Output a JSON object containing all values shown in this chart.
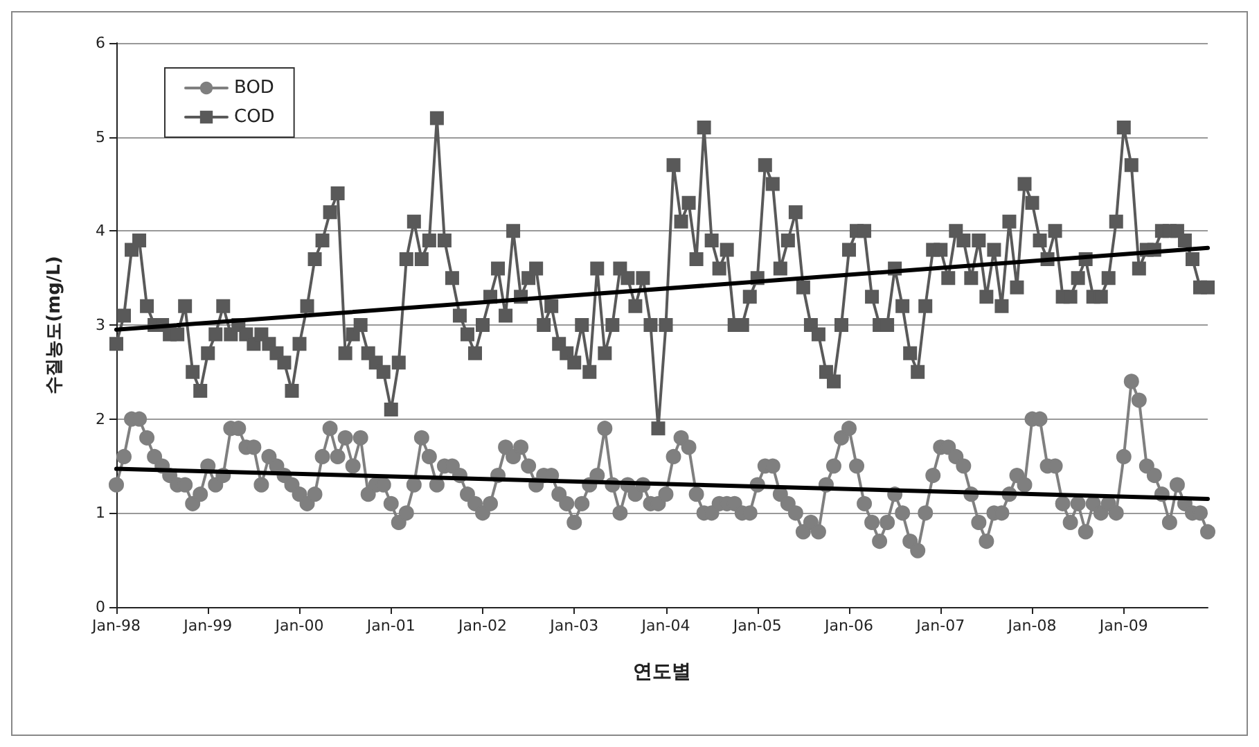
{
  "chart_data": {
    "type": "line",
    "xlabel": "연도별",
    "ylabel": "수질농도(mg/L)",
    "categories": [
      "Jan-98",
      null,
      null,
      null,
      null,
      null,
      null,
      null,
      null,
      null,
      null,
      null,
      "Jan-99",
      null,
      null,
      null,
      null,
      null,
      null,
      null,
      null,
      null,
      null,
      null,
      "Jan-00",
      null,
      null,
      null,
      null,
      null,
      null,
      null,
      null,
      null,
      null,
      null,
      "Jan-01",
      null,
      null,
      null,
      null,
      null,
      null,
      null,
      null,
      null,
      null,
      null,
      "Jan-02",
      null,
      null,
      null,
      null,
      null,
      null,
      null,
      null,
      null,
      null,
      null,
      "Jan-03",
      null,
      null,
      null,
      null,
      null,
      null,
      null,
      null,
      null,
      null,
      null,
      "Jan-04",
      null,
      null,
      null,
      null,
      null,
      null,
      null,
      null,
      null,
      null,
      null,
      "Jan-05",
      null,
      null,
      null,
      null,
      null,
      null,
      null,
      null,
      null,
      null,
      null,
      "Jan-06",
      null,
      null,
      null,
      null,
      null,
      null,
      null,
      null,
      null,
      null,
      null,
      "Jan-07",
      null,
      null,
      null,
      null,
      null,
      null,
      null,
      null,
      null,
      null,
      null,
      "Jan-08",
      null,
      null,
      null,
      null,
      null,
      null,
      null,
      null,
      null,
      null,
      null,
      "Jan-09",
      null,
      null,
      null,
      null,
      null,
      null,
      null,
      null,
      null,
      null,
      null
    ],
    "series": [
      {
        "name": "BOD",
        "color": "#7f7f7f",
        "marker": "circle",
        "values": [
          1.3,
          1.6,
          2.0,
          2.0,
          1.8,
          1.6,
          1.5,
          1.4,
          1.3,
          1.3,
          1.1,
          1.2,
          1.5,
          1.3,
          1.4,
          1.9,
          1.9,
          1.7,
          1.7,
          1.3,
          1.6,
          1.5,
          1.4,
          1.3,
          1.2,
          1.1,
          1.2,
          1.6,
          1.9,
          1.6,
          1.8,
          1.5,
          1.8,
          1.2,
          1.3,
          1.3,
          1.1,
          0.9,
          1.0,
          1.3,
          1.8,
          1.6,
          1.3,
          1.5,
          1.5,
          1.4,
          1.2,
          1.1,
          1.0,
          1.1,
          1.4,
          1.7,
          1.6,
          1.7,
          1.5,
          1.3,
          1.4,
          1.4,
          1.2,
          1.1,
          0.9,
          1.1,
          1.3,
          1.4,
          1.9,
          1.3,
          1.0,
          1.3,
          1.2,
          1.3,
          1.1,
          1.1,
          1.2,
          1.6,
          1.8,
          1.7,
          1.2,
          1.0,
          1.0,
          1.1,
          1.1,
          1.1,
          1.0,
          1.0,
          1.3,
          1.5,
          1.5,
          1.2,
          1.1,
          1.0,
          0.8,
          0.9,
          0.8,
          1.3,
          1.5,
          1.8,
          1.9,
          1.5,
          1.1,
          0.9,
          0.7,
          0.9,
          1.2,
          1.0,
          0.7,
          0.6,
          1.0,
          1.4,
          1.7,
          1.7,
          1.6,
          1.5,
          1.2,
          0.9,
          0.7,
          1.0,
          1.0,
          1.2,
          1.4,
          1.3,
          2.0,
          2.0,
          1.5,
          1.5,
          1.1,
          0.9,
          1.1,
          0.8,
          1.1,
          1.0,
          1.1,
          1.0,
          1.6,
          2.4,
          2.2,
          1.5,
          1.4,
          1.2,
          0.9,
          1.3,
          1.1,
          1.0,
          1.0,
          0.8
        ]
      },
      {
        "name": "COD",
        "color": "#595959",
        "marker": "square",
        "values": [
          2.8,
          3.1,
          3.8,
          3.9,
          3.2,
          3.0,
          3.0,
          2.9,
          2.9,
          3.2,
          2.5,
          2.3,
          2.7,
          2.9,
          3.2,
          2.9,
          3.0,
          2.9,
          2.8,
          2.9,
          2.8,
          2.7,
          2.6,
          2.3,
          2.8,
          3.2,
          3.7,
          3.9,
          4.2,
          4.4,
          2.7,
          2.9,
          3.0,
          2.7,
          2.6,
          2.5,
          2.1,
          2.6,
          3.7,
          4.1,
          3.7,
          3.9,
          5.2,
          3.9,
          3.5,
          3.1,
          2.9,
          2.7,
          3.0,
          3.3,
          3.6,
          3.1,
          4.0,
          3.3,
          3.5,
          3.6,
          3.0,
          3.2,
          2.8,
          2.7,
          2.6,
          3.0,
          2.5,
          3.6,
          2.7,
          3.0,
          3.6,
          3.5,
          3.2,
          3.5,
          3.0,
          1.9,
          3.0,
          4.7,
          4.1,
          4.3,
          3.7,
          5.1,
          3.9,
          3.6,
          3.8,
          3.0,
          3.0,
          3.3,
          3.5,
          4.7,
          4.5,
          3.6,
          3.9,
          4.2,
          3.4,
          3.0,
          2.9,
          2.5,
          2.4,
          3.0,
          3.8,
          4.0,
          4.0,
          3.3,
          3.0,
          3.0,
          3.6,
          3.2,
          2.7,
          2.5,
          3.2,
          3.8,
          3.8,
          3.5,
          4.0,
          3.9,
          3.5,
          3.9,
          3.3,
          3.8,
          3.2,
          4.1,
          3.4,
          4.5,
          4.3,
          3.9,
          3.7,
          4.0,
          3.3,
          3.3,
          3.5,
          3.7,
          3.3,
          3.3,
          3.5,
          4.1,
          5.1,
          4.7,
          3.6,
          3.8,
          3.8,
          4.0,
          4.0,
          4.0,
          3.9,
          3.7,
          3.4,
          3.4
        ]
      },
      {
        "color": "#000000",
        "marker": "none",
        "values": [
          1.47,
          null,
          null,
          null,
          null,
          null,
          null,
          null,
          null,
          null,
          null,
          null,
          null,
          null,
          null,
          null,
          null,
          null,
          null,
          null,
          null,
          null,
          null,
          null,
          null,
          null,
          null,
          null,
          null,
          null,
          null,
          null,
          null,
          null,
          null,
          null,
          null,
          null,
          null,
          null,
          null,
          null,
          null,
          null,
          null,
          null,
          null,
          null,
          null,
          null,
          null,
          null,
          null,
          null,
          null,
          null,
          null,
          null,
          null,
          null,
          null,
          null,
          null,
          null,
          null,
          null,
          null,
          null,
          null,
          null,
          null,
          null,
          null,
          null,
          null,
          null,
          null,
          null,
          null,
          null,
          null,
          null,
          null,
          null,
          null,
          null,
          null,
          null,
          null,
          null,
          null,
          null,
          null,
          null,
          null,
          null,
          null,
          null,
          null,
          null,
          null,
          null,
          null,
          null,
          null,
          null,
          null,
          null,
          null,
          null,
          null,
          null,
          null,
          null,
          null,
          null,
          null,
          null,
          null,
          null,
          null,
          null,
          null,
          null,
          null,
          null,
          null,
          null,
          null,
          null,
          null,
          null,
          null,
          null,
          null,
          null,
          null,
          null,
          null,
          null,
          null,
          null,
          null,
          1.15
        ]
      },
      {
        "color": "#000000",
        "marker": "none",
        "values": [
          2.95,
          null,
          null,
          null,
          null,
          null,
          null,
          null,
          null,
          null,
          null,
          null,
          null,
          null,
          null,
          null,
          null,
          null,
          null,
          null,
          null,
          null,
          null,
          null,
          null,
          null,
          null,
          null,
          null,
          null,
          null,
          null,
          null,
          null,
          null,
          null,
          null,
          null,
          null,
          null,
          null,
          null,
          null,
          null,
          null,
          null,
          null,
          null,
          null,
          null,
          null,
          null,
          null,
          null,
          null,
          null,
          null,
          null,
          null,
          null,
          null,
          null,
          null,
          null,
          null,
          null,
          null,
          null,
          null,
          null,
          null,
          null,
          null,
          null,
          null,
          null,
          null,
          null,
          null,
          null,
          null,
          null,
          null,
          null,
          null,
          null,
          null,
          null,
          null,
          null,
          null,
          null,
          null,
          null,
          null,
          null,
          null,
          null,
          null,
          null,
          null,
          null,
          null,
          null,
          null,
          null,
          null,
          null,
          null,
          null,
          null,
          null,
          null,
          null,
          null,
          null,
          null,
          null,
          null,
          null,
          null,
          null,
          null,
          null,
          null,
          null,
          null,
          null,
          null,
          null,
          null,
          null,
          null,
          null,
          null,
          null,
          null,
          null,
          null,
          null,
          null,
          null,
          null,
          3.82
        ]
      }
    ],
    "ylim": [
      0,
      6
    ],
    "yticks": [
      0,
      1,
      2,
      3,
      4,
      5,
      6
    ],
    "grid": "y",
    "legend": "top left"
  }
}
